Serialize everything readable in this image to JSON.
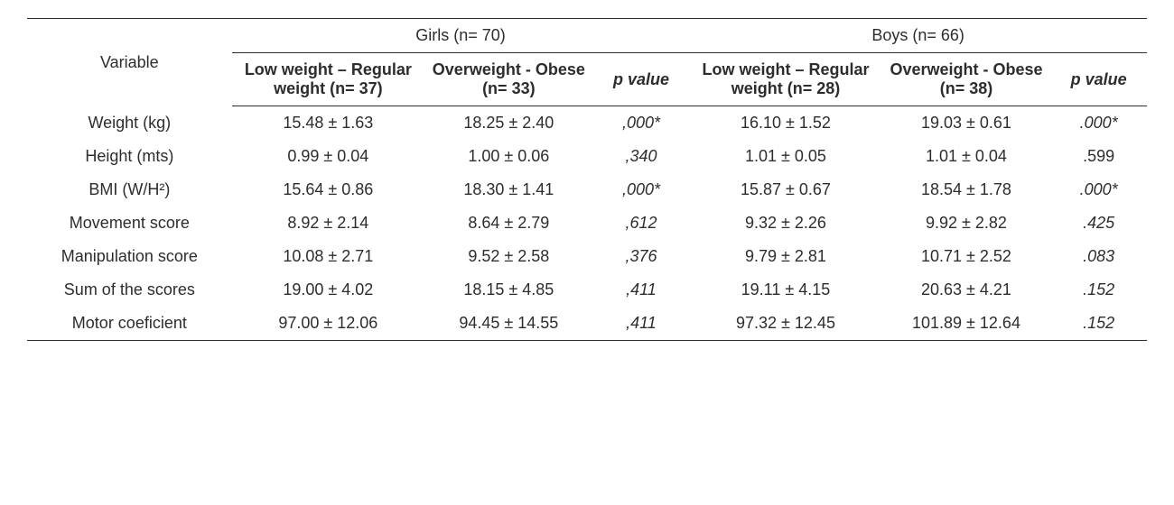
{
  "header": {
    "variable_label": "Variable",
    "girls_label": "Girls (n= 70)",
    "boys_label": "Boys (n= 66)",
    "girls_low": "Low weight – Regular weight (n= 37)",
    "girls_over": "Overweight - Obese (n= 33)",
    "girls_p": "p value",
    "boys_low": "Low weight – Regular weight (n= 28)",
    "boys_over": "Overweight - Obese (n= 38)",
    "boys_p": "p value"
  },
  "rows": [
    {
      "var": "Weight (kg)",
      "g_low": "15.48 ± 1.63",
      "g_over": "18.25 ± 2.40",
      "g_p": ",000*",
      "b_low": "16.10 ± 1.52",
      "b_over": "19.03 ± 0.61",
      "b_p": ".000*"
    },
    {
      "var": "Height (mts)",
      "g_low": "0.99 ± 0.04",
      "g_over": "1.00 ± 0.06",
      "g_p": ",340",
      "b_low": "1.01 ± 0.05",
      "b_over": "1.01 ± 0.04",
      "b_p": ".599"
    },
    {
      "var": "BMI (W/H²)",
      "g_low": "15.64 ± 0.86",
      "g_over": "18.30 ± 1.41",
      "g_p": ",000*",
      "b_low": "15.87 ± 0.67",
      "b_over": "18.54 ± 1.78",
      "b_p": ".000*"
    },
    {
      "var": "Movement score",
      "g_low": "8.92 ± 2.14",
      "g_over": "8.64 ± 2.79",
      "g_p": ",612",
      "b_low": "9.32 ± 2.26",
      "b_over": "9.92 ± 2.82",
      "b_p": ".425"
    },
    {
      "var": "Manipulation score",
      "g_low": "10.08 ± 2.71",
      "g_over": "9.52 ± 2.58",
      "g_p": ",376",
      "b_low": "9.79 ± 2.81",
      "b_over": "10.71 ± 2.52",
      "b_p": ".083"
    },
    {
      "var": "Sum of the scores",
      "g_low": "19.00 ± 4.02",
      "g_over": "18.15 ± 4.85",
      "g_p": ",411",
      "b_low": "19.11 ± 4.15",
      "b_over": "20.63 ± 4.21",
      "b_p": ".152"
    },
    {
      "var": "Motor coeficient",
      "g_low": "97.00 ± 12.06",
      "g_over": "94.45 ± 14.55",
      "g_p": ",411",
      "b_low": "97.32 ± 12.45",
      "b_over": "101.89 ± 12.64",
      "b_p": ".152"
    }
  ],
  "style": {
    "rule_color": "#2d2d2d",
    "text_color": "#2d2d2d",
    "background": "#ffffff",
    "p_italic_rows_girls": [
      0,
      1,
      2,
      3,
      4,
      5,
      6
    ],
    "p_italic_rows_boys": [
      0,
      2,
      3,
      4,
      5,
      6
    ],
    "boys_low_wrap_rows": [
      6
    ],
    "boys_over_wrap_rows": [
      6
    ]
  }
}
